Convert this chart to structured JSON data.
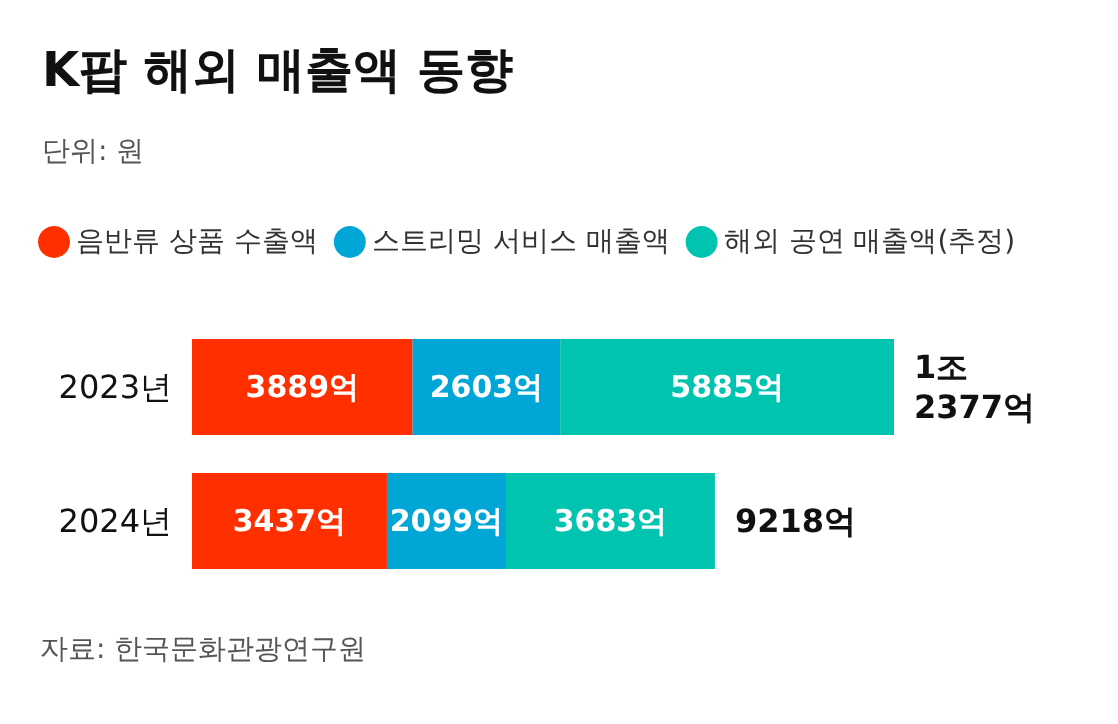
{
  "chart_data": {
    "type": "bar",
    "orientation": "horizontal",
    "stacked": true,
    "title": "K팝 해외 매출액 동향",
    "subtitle": "단위: 원",
    "categories": [
      "2023년",
      "2024년"
    ],
    "series": [
      {
        "name": "음반류 상품 수출액",
        "color": "#ff2f00",
        "values": [
          3889,
          3437
        ],
        "value_labels": [
          "3889억",
          "3437억"
        ]
      },
      {
        "name": "스트리밍 서비스 매출액",
        "color": "#00a6d6",
        "values": [
          2603,
          2099
        ],
        "value_labels": [
          "2603억",
          "2099억"
        ]
      },
      {
        "name": "해외 공연 매출액(추정)",
        "color": "#00c4b0",
        "values": [
          5885,
          3683
        ],
        "value_labels": [
          "5885억",
          "3683억"
        ]
      }
    ],
    "totals": [
      "1조 2377억",
      "9218억"
    ],
    "legend": "top left",
    "annotations": [
      "자료: 한국문화관광연구원"
    ]
  }
}
